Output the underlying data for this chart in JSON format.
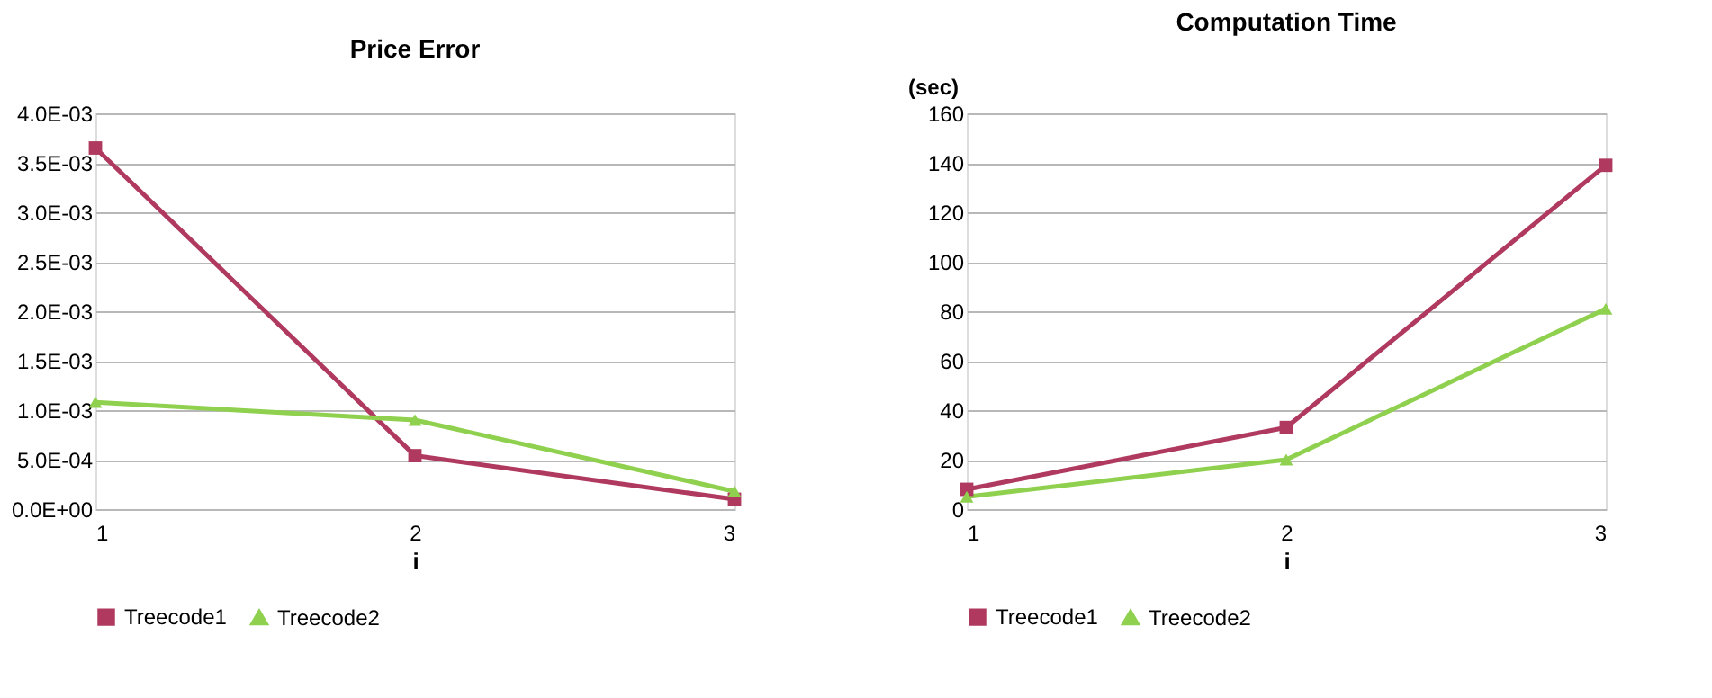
{
  "chart_data": [
    {
      "type": "line",
      "title": "Price Error",
      "xlabel": "i",
      "x": [
        1,
        2,
        3
      ],
      "xlim": [
        1,
        3
      ],
      "xticks": [
        1,
        2,
        3
      ],
      "ylim": [
        0,
        0.004
      ],
      "yticks": [
        {
          "value": 0,
          "label": "0.0E+00"
        },
        {
          "value": 0.0005,
          "label": "5.0E-04"
        },
        {
          "value": 0.001,
          "label": "1.0E-03"
        },
        {
          "value": 0.0015,
          "label": "1.5E-03"
        },
        {
          "value": 0.002,
          "label": "2.0E-03"
        },
        {
          "value": 0.0025,
          "label": "2.5E-03"
        },
        {
          "value": 0.003,
          "label": "3.0E-03"
        },
        {
          "value": 0.0035,
          "label": "3.5E-03"
        },
        {
          "value": 0.004,
          "label": "4.0E-03"
        }
      ],
      "grid": "y",
      "legend": "bottom",
      "line_style": "solid",
      "series": [
        {
          "name": "Treecode1",
          "color": "#b03a5f",
          "marker": "square",
          "values": [
            0.00365,
            0.00054,
            0.0001
          ]
        },
        {
          "name": "Treecode2",
          "color": "#8fd14f",
          "marker": "triangle",
          "values": [
            0.00108,
            0.0009,
            0.00018
          ]
        }
      ]
    },
    {
      "type": "line",
      "title": "Computation Time",
      "xlabel": "i",
      "ylabel": "(sec)",
      "x": [
        1,
        2,
        3
      ],
      "xlim": [
        1,
        3
      ],
      "xticks": [
        1,
        2,
        3
      ],
      "ylim": [
        0,
        160
      ],
      "yticks": [
        0,
        20,
        40,
        60,
        80,
        100,
        120,
        140,
        160
      ],
      "grid": "y",
      "legend": "bottom",
      "line_style": "solid",
      "series": [
        {
          "name": "Treecode1",
          "color": "#b03a5f",
          "marker": "square",
          "values": [
            8,
            33,
            139
          ]
        },
        {
          "name": "Treecode2",
          "color": "#8fd14f",
          "marker": "triangle",
          "values": [
            5,
            20,
            81
          ]
        }
      ]
    }
  ]
}
